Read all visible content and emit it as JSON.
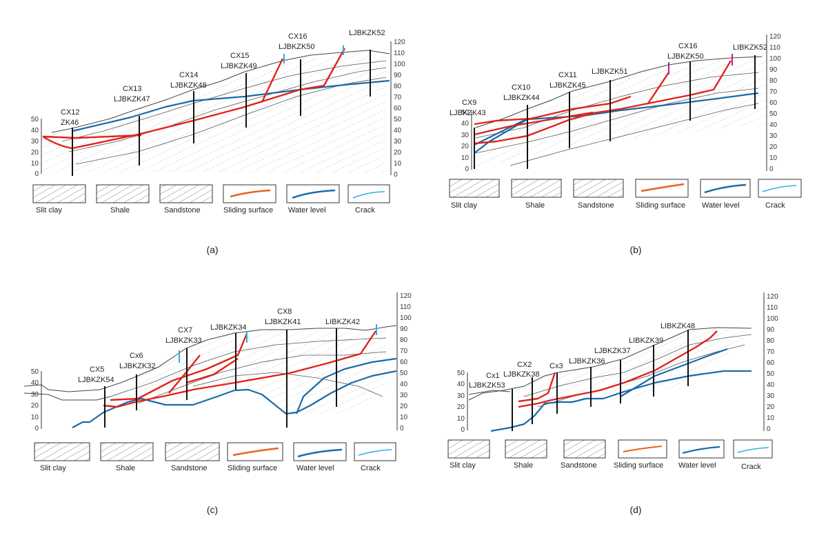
{
  "axis_ticks": {
    "right_full": [
      "0",
      "10",
      "20",
      "30",
      "40",
      "50",
      "60",
      "70",
      "80",
      "90",
      "100",
      "110",
      "120"
    ],
    "left_short": [
      "0",
      "10",
      "20",
      "30",
      "40",
      "50"
    ]
  },
  "legend": {
    "items": [
      "Slit clay",
      "Shale",
      "Sandstone",
      "Sliding surface",
      "Water level",
      "Crack"
    ],
    "colors": {
      "sliding_surface": "#e0231c",
      "water_level": "#1a6aa8",
      "crack": "#2aaee5"
    }
  },
  "panels": [
    {
      "label": "(a)",
      "boreholes": [
        [
          "CX12",
          "ZK46"
        ],
        [
          "CX13",
          "LJBKZK47"
        ],
        [
          "CX14",
          "LJBKZK48"
        ],
        [
          "CX15",
          "LJBKZK49"
        ],
        [
          "CX16",
          "LJBKZK50"
        ],
        [
          "LJBKZK52"
        ]
      ]
    },
    {
      "label": "(b)",
      "boreholes": [
        [
          "CX9",
          "LJBKZK43"
        ],
        [
          "CX10",
          "LJBKZK44"
        ],
        [
          "CX11",
          "LJBKZK45"
        ],
        [
          "LJBKZK51"
        ],
        [
          "CX16",
          "LJBKZK50"
        ],
        [
          "LIBKZK52"
        ]
      ]
    },
    {
      "label": "(c)",
      "boreholes": [
        [
          "CX5",
          "LJBKZK54"
        ],
        [
          "Cx6",
          "LJBKZK32"
        ],
        [
          "CX7",
          "LJBKZK33"
        ],
        [
          "LJBKZK34"
        ],
        [
          "CX8",
          "LJBKZK41"
        ],
        [
          "LIBKZK42"
        ]
      ]
    },
    {
      "label": "(d)",
      "boreholes": [
        [
          "Cx1",
          "LJBKZK53"
        ],
        [
          "CX2",
          "LJBKZK38"
        ],
        [
          "Cx3"
        ],
        [
          "LJBKZK36"
        ],
        [
          "LJBKZK37"
        ],
        [
          "LIBKZK39"
        ],
        [
          "LIBKZK48"
        ]
      ]
    }
  ]
}
